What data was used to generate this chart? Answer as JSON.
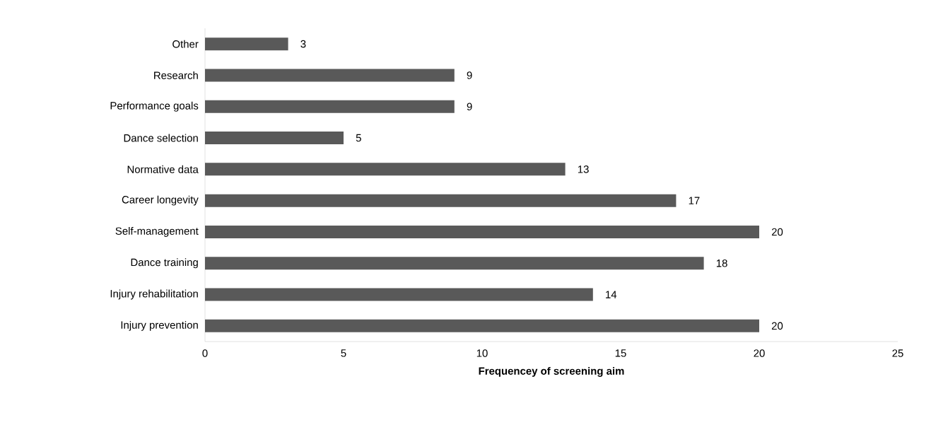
{
  "chart_data": {
    "type": "bar",
    "orientation": "horizontal",
    "xlabel": "Frequencey of screening aim",
    "categories": [
      "Other",
      "Research",
      "Performance goals",
      "Dance  selection",
      "Normative data",
      "Career longevity",
      "Self-management",
      "Dance training",
      "Injury rehabilitation",
      "Injury prevention"
    ],
    "values": [
      3,
      9,
      9,
      5,
      13,
      17,
      20,
      18,
      14,
      20
    ],
    "color": "#595959",
    "xlim": [
      0,
      25
    ],
    "xticks": [
      0,
      5,
      10,
      15,
      20,
      25
    ],
    "data_labels": true,
    "grid": false
  }
}
